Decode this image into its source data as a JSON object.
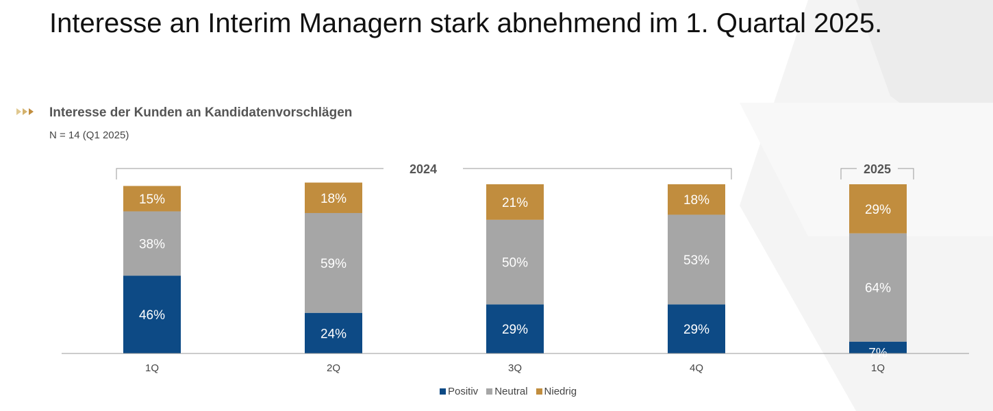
{
  "page": {
    "title": "Interesse an Interim Managern stark abnehmend im 1. Quartal 2025.",
    "subtitle": "Interesse der Kunden an Kandidatenvorschlägen",
    "note": "N = 14 (Q1 2025)",
    "bullet_icon": "triple-arrow-icon"
  },
  "colors": {
    "positiv": "#0d4a85",
    "neutral": "#a6a6a6",
    "niedrig": "#c18d3e",
    "label": "#ffffff",
    "axis": "#999999",
    "tick_text": "#444444",
    "bracket": "#9a9a9a",
    "arrow": "#c8a55a"
  },
  "chart_data": {
    "type": "bar",
    "stacked": true,
    "categories": [
      "1Q",
      "2Q",
      "3Q",
      "4Q",
      "1Q"
    ],
    "groups": [
      {
        "label": "2024",
        "categories": [
          0,
          1,
          2,
          3
        ]
      },
      {
        "label": "2025",
        "categories": [
          4
        ]
      }
    ],
    "series": [
      {
        "name": "Positiv",
        "values": [
          46,
          24,
          29,
          29,
          7
        ],
        "color": "#0d4a85"
      },
      {
        "name": "Neutral",
        "values": [
          38,
          59,
          50,
          53,
          64
        ],
        "color": "#a6a6a6"
      },
      {
        "name": "Niedrig",
        "values": [
          15,
          18,
          21,
          18,
          29
        ],
        "color": "#c18d3e"
      }
    ],
    "value_suffix": "%",
    "xlabel": "",
    "ylabel": "",
    "ylim": [
      0,
      100
    ],
    "grid": false,
    "legend": "bottom-center"
  }
}
